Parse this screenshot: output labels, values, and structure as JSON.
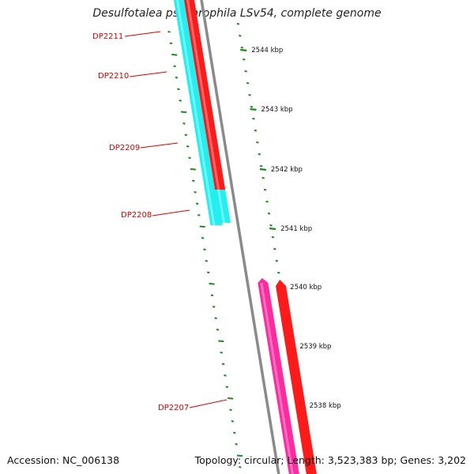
{
  "title": "Desulfotalea psychrophila LSv54, complete genome",
  "footer": {
    "accession": "Accession: NC_006138",
    "summary": "Topology: circular; Length: 3,523,383 bp; Genes: 3,202"
  },
  "colors": {
    "background": "#ffffff",
    "backbone": "#8a8a8a",
    "tick": "#1e8a1e",
    "label": "#e00000",
    "gene_cyan": "#22f0f0",
    "gene_red": "#ff1a1a",
    "gene_magenta": "#ff2aa0"
  },
  "kbp_labels": [
    "2544 kbp",
    "2543 kbp",
    "2542 kbp",
    "2541 kbp",
    "2540 kbp",
    "2539 kbp",
    "2538 kbp"
  ],
  "genes": [
    {
      "label": "DP2211",
      "color": "gene_cyan",
      "strand": "minus"
    },
    {
      "label": "DP2210",
      "color": "gene_red",
      "strand": "plus"
    },
    {
      "label": "DP2209",
      "color": "gene_red",
      "strand": "plus"
    },
    {
      "label": "DP2208",
      "color": "gene_cyan",
      "strand": "minus"
    },
    {
      "label": "DP2207",
      "color": "gene_magenta",
      "strand": "minus"
    }
  ],
  "second_gene_color": "gene_red"
}
